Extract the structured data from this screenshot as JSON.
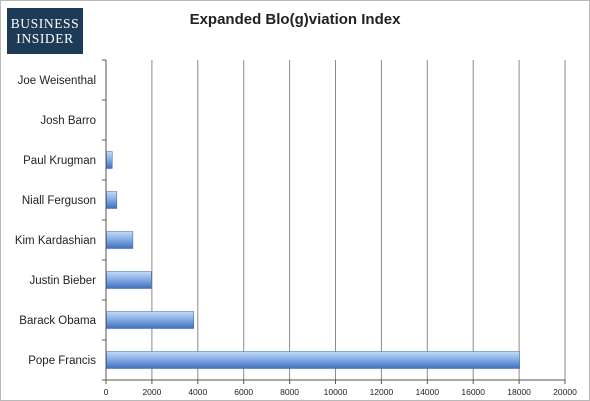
{
  "logo": {
    "line1": "BUSINESS",
    "line2": "INSIDER"
  },
  "chart_data": {
    "type": "bar",
    "orientation": "horizontal",
    "title": "Expanded Blo(g)viation Index",
    "categories": [
      "Joe Weisenthal",
      "Josh Barro",
      "Paul Krugman",
      "Niall Ferguson",
      "Kim Kardashian",
      "Justin Bieber",
      "Barack Obama",
      "Pope Francis"
    ],
    "values": [
      0,
      0,
      250,
      450,
      1150,
      1950,
      3800,
      18000
    ],
    "xlim": [
      0,
      20000
    ],
    "xticks": [
      0,
      2000,
      4000,
      6000,
      8000,
      10000,
      12000,
      14000,
      16000,
      18000,
      20000
    ],
    "grid": true,
    "legend": "none",
    "colors": {
      "bar_light": "#c6dbf7",
      "bar_mid": "#7ea8e6",
      "bar_dark": "#3f6fbd",
      "grid": "#8a8a8a"
    }
  }
}
